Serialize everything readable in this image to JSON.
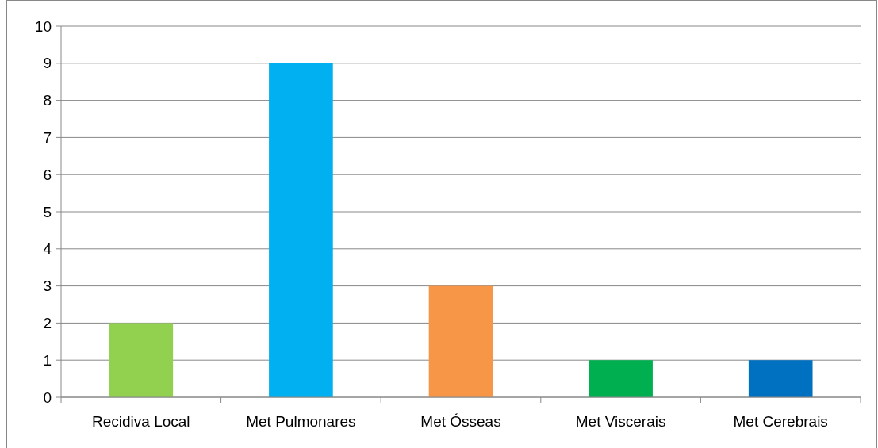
{
  "chart_data": {
    "type": "bar",
    "categories": [
      "Recidiva Local",
      "Met Pulmonares",
      "Met Ósseas",
      "Met Viscerais",
      "Met Cerebrais"
    ],
    "values": [
      2,
      9,
      3,
      1,
      1
    ],
    "colors": [
      "#92d050",
      "#00b0f0",
      "#f79646",
      "#00b050",
      "#0070c0"
    ],
    "ylim": [
      0,
      10
    ],
    "yticks": [
      0,
      1,
      2,
      3,
      4,
      5,
      6,
      7,
      8,
      9,
      10
    ],
    "grid": "y"
  }
}
